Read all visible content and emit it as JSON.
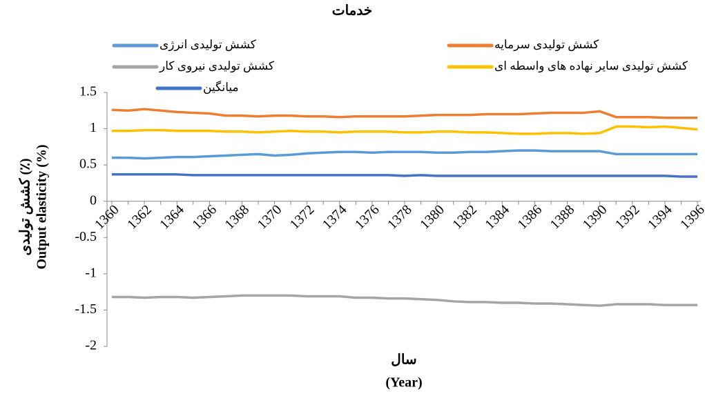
{
  "chart_data": {
    "type": "line",
    "title": "خدمات",
    "categories": [
      "1360",
      null,
      "1362",
      null,
      "1364",
      null,
      "1366",
      null,
      "1368",
      null,
      "1370",
      null,
      "1372",
      null,
      "1374",
      null,
      "1376",
      null,
      "1378",
      null,
      "1380",
      null,
      "1382",
      null,
      "1384",
      null,
      "1386",
      null,
      "1388",
      null,
      "1390",
      null,
      "1392",
      null,
      "1394",
      null,
      "1396"
    ],
    "x_label": [
      "سال",
      "(Year)"
    ],
    "y_label": [
      "کشش تولیدی (٪)",
      "Output elasticity (%)"
    ],
    "ylim": [
      -2,
      1.5
    ],
    "yticks": [
      -2,
      -1.5,
      -1,
      -0.5,
      0,
      0.5,
      1,
      1.5
    ],
    "series": [
      {
        "name": "کشش تولیدی انرژی",
        "color": "#5b9bd5",
        "values": [
          0.6,
          0.6,
          0.59,
          0.6,
          0.61,
          0.61,
          0.62,
          0.63,
          0.64,
          0.65,
          0.63,
          0.64,
          0.66,
          0.67,
          0.68,
          0.68,
          0.67,
          0.68,
          0.68,
          0.68,
          0.67,
          0.67,
          0.68,
          0.68,
          0.69,
          0.7,
          0.7,
          0.69,
          0.69,
          0.69,
          0.69,
          0.65,
          0.65,
          0.65,
          0.65,
          0.65,
          0.65
        ]
      },
      {
        "name": "کشش تولیدی سرمایه",
        "color": "#ed7d31",
        "values": [
          1.26,
          1.25,
          1.27,
          1.25,
          1.23,
          1.22,
          1.21,
          1.18,
          1.18,
          1.17,
          1.18,
          1.18,
          1.17,
          1.17,
          1.16,
          1.17,
          1.17,
          1.17,
          1.17,
          1.18,
          1.19,
          1.19,
          1.19,
          1.2,
          1.2,
          1.2,
          1.21,
          1.22,
          1.22,
          1.22,
          1.24,
          1.16,
          1.16,
          1.16,
          1.15,
          1.15,
          1.15
        ]
      },
      {
        "name": "کشش تولیدی نیروی کار",
        "color": "#a5a5a5",
        "values": [
          -1.32,
          -1.32,
          -1.33,
          -1.32,
          -1.32,
          -1.33,
          -1.32,
          -1.31,
          -1.3,
          -1.3,
          -1.3,
          -1.3,
          -1.31,
          -1.31,
          -1.31,
          -1.33,
          -1.33,
          -1.34,
          -1.34,
          -1.35,
          -1.36,
          -1.38,
          -1.39,
          -1.39,
          -1.4,
          -1.4,
          -1.41,
          -1.41,
          -1.42,
          -1.43,
          -1.44,
          -1.42,
          -1.42,
          -1.42,
          -1.43,
          -1.43,
          -1.43
        ]
      },
      {
        "name": "کشش تولیدی سایر نهاده های واسطه ای",
        "color": "#ffc000",
        "values": [
          0.97,
          0.97,
          0.98,
          0.98,
          0.97,
          0.97,
          0.97,
          0.96,
          0.96,
          0.95,
          0.96,
          0.97,
          0.96,
          0.96,
          0.95,
          0.96,
          0.96,
          0.96,
          0.95,
          0.95,
          0.96,
          0.96,
          0.95,
          0.95,
          0.94,
          0.93,
          0.93,
          0.94,
          0.94,
          0.93,
          0.94,
          1.03,
          1.03,
          1.02,
          1.03,
          1.01,
          0.99
        ]
      },
      {
        "name": "میانگین",
        "color": "#4472c4",
        "values": [
          0.37,
          0.37,
          0.37,
          0.37,
          0.37,
          0.36,
          0.36,
          0.36,
          0.36,
          0.36,
          0.36,
          0.36,
          0.36,
          0.36,
          0.36,
          0.36,
          0.36,
          0.36,
          0.35,
          0.36,
          0.35,
          0.35,
          0.35,
          0.35,
          0.35,
          0.35,
          0.35,
          0.35,
          0.35,
          0.35,
          0.35,
          0.35,
          0.35,
          0.35,
          0.35,
          0.34,
          0.34
        ]
      }
    ]
  }
}
